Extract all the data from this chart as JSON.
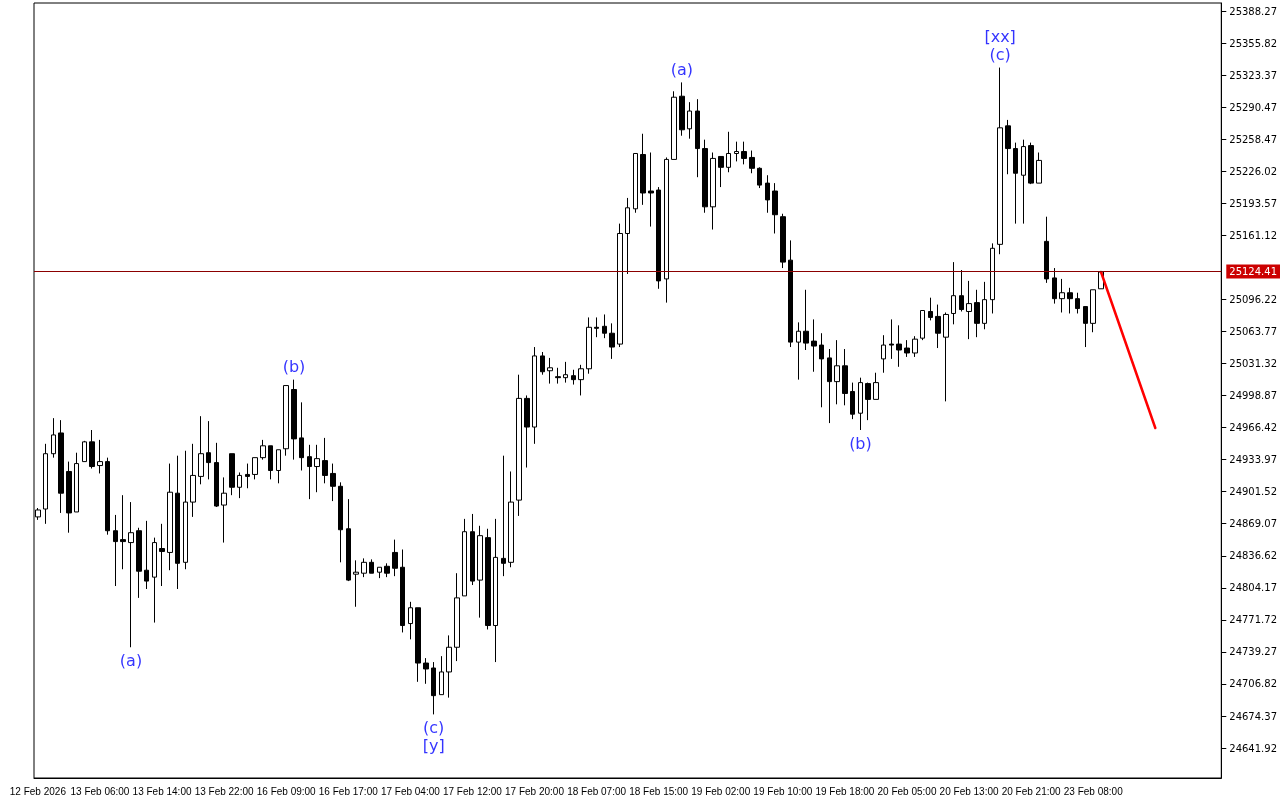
{
  "chart_data": {
    "type": "candlestick",
    "grid": false,
    "categories": [
      "12 Feb 2026",
      null,
      null,
      null,
      null,
      null,
      null,
      null,
      "13 Feb 06:00",
      null,
      null,
      null,
      null,
      null,
      null,
      null,
      "13 Feb 14:00",
      null,
      null,
      null,
      null,
      null,
      null,
      null,
      "13 Feb 22:00",
      null,
      null,
      null,
      null,
      null,
      null,
      null,
      "16 Feb 09:00",
      null,
      null,
      null,
      null,
      null,
      null,
      null,
      "16 Feb 17:00",
      null,
      null,
      null,
      null,
      null,
      null,
      null,
      "17 Feb 04:00",
      null,
      null,
      null,
      null,
      null,
      null,
      null,
      "17 Feb 12:00",
      null,
      null,
      null,
      null,
      null,
      null,
      null,
      "17 Feb 20:00",
      null,
      null,
      null,
      null,
      null,
      null,
      null,
      "18 Feb 07:00",
      null,
      null,
      null,
      null,
      null,
      null,
      null,
      "18 Feb 15:00",
      null,
      null,
      null,
      null,
      null,
      null,
      null,
      "19 Feb 02:00",
      null,
      null,
      null,
      null,
      null,
      null,
      null,
      "19 Feb 10:00",
      null,
      null,
      null,
      null,
      null,
      null,
      null,
      "19 Feb 18:00",
      null,
      null,
      null,
      null,
      null,
      null,
      null,
      "20 Feb 05:00",
      null,
      null,
      null,
      null,
      null,
      null,
      null,
      "20 Feb 13:00",
      null,
      null,
      null,
      null,
      null,
      null,
      null,
      "20 Feb 21:00",
      null,
      null,
      null,
      null,
      null,
      null,
      null,
      "23 Feb 08:00",
      null,
      null,
      null,
      null,
      null,
      null,
      null,
      null,
      null,
      null,
      null,
      null,
      null,
      null,
      null,
      null
    ],
    "ylim": [
      24611.6,
      25396.4
    ],
    "yticks": [
      25388.27,
      25355.82,
      25323.37,
      25290.47,
      25258.47,
      25226.02,
      25193.57,
      25161.12,
      25096.22,
      25063.77,
      25031.32,
      24998.87,
      24966.42,
      24933.97,
      24901.52,
      24869.07,
      24836.62,
      24804.17,
      24771.72,
      24739.27,
      24706.82,
      24674.37,
      24641.92
    ],
    "ref_lines": [
      {
        "axis": "y",
        "value": 25124.41,
        "label": "25124.41",
        "color": "#8b0000"
      }
    ],
    "series": [
      {
        "color": "#000000",
        "ohlc": [
          [
            24876,
            24885,
            24873,
            24883
          ],
          [
            24884,
            24950,
            24869,
            24940
          ],
          [
            24940,
            24976,
            24936,
            24959
          ],
          [
            24961,
            24974,
            24880,
            24900
          ],
          [
            24922,
            24932,
            24860,
            24880
          ],
          [
            24881,
            24941,
            24881,
            24930
          ],
          [
            24932,
            24953,
            24932,
            24952
          ],
          [
            24952,
            24964,
            24925,
            24927
          ],
          [
            24928,
            24954,
            24920,
            24932
          ],
          [
            24932,
            24936,
            24858,
            24862
          ],
          [
            24862,
            24878,
            24806,
            24851
          ],
          [
            24853,
            24898,
            24823,
            24851
          ],
          [
            24850,
            24891,
            24744,
            24860
          ],
          [
            24862,
            24865,
            24794,
            24821
          ],
          [
            24822,
            24872,
            24803,
            24811
          ],
          [
            24815,
            24855,
            24769,
            24850
          ],
          [
            24844,
            24869,
            24806,
            24841
          ],
          [
            24840,
            24930,
            24822,
            24901
          ],
          [
            24900,
            24938,
            24803,
            24829
          ],
          [
            24830,
            24943,
            24823,
            24891
          ],
          [
            24891,
            24950,
            24876,
            24918
          ],
          [
            24917,
            24978,
            24909,
            24940
          ],
          [
            24941,
            24973,
            24914,
            24931
          ],
          [
            24931,
            24951,
            24886,
            24887
          ],
          [
            24888,
            24916,
            24850,
            24900
          ],
          [
            24940,
            24940,
            24898,
            24906
          ],
          [
            24906,
            24921,
            24895,
            24918
          ],
          [
            24919,
            24930,
            24905,
            24917
          ],
          [
            24919,
            24936,
            24914,
            24936
          ],
          [
            24936,
            24954,
            24934,
            24948
          ],
          [
            24948,
            24948,
            24914,
            24923
          ],
          [
            24923,
            24944,
            24910,
            24944
          ],
          [
            24945,
            25009,
            24938,
            25009
          ],
          [
            25005,
            25015,
            24934,
            24955
          ],
          [
            24956,
            24992,
            24923,
            24936
          ],
          [
            24937,
            24949,
            24894,
            24927
          ],
          [
            24927,
            24949,
            24901,
            24935
          ],
          [
            24933,
            24956,
            24910,
            24918
          ],
          [
            24920,
            24930,
            24892,
            24907
          ],
          [
            24907,
            24911,
            24830,
            24863
          ],
          [
            24864,
            24894,
            24811,
            24812
          ],
          [
            24818,
            24832,
            24785,
            24820
          ],
          [
            24819,
            24834,
            24815,
            24830
          ],
          [
            24830,
            24833,
            24819,
            24819
          ],
          [
            24820,
            24825,
            24814,
            24825
          ],
          [
            24826,
            24829,
            24815,
            24819
          ],
          [
            24840,
            24853,
            24816,
            24824
          ],
          [
            24825,
            24843,
            24759,
            24766
          ],
          [
            24768,
            24790,
            24752,
            24784
          ],
          [
            24784,
            24784,
            24709,
            24728
          ],
          [
            24728,
            24733,
            24707,
            24722
          ],
          [
            24723,
            24729,
            24676,
            24695
          ],
          [
            24696,
            24735,
            24696,
            24719
          ],
          [
            24719,
            24756,
            24693,
            24744
          ],
          [
            24744,
            24819,
            24730,
            24794
          ],
          [
            24796,
            24874,
            24796,
            24861
          ],
          [
            24861,
            24879,
            24807,
            24811
          ],
          [
            24812,
            24867,
            24774,
            24857
          ],
          [
            24855,
            24864,
            24762,
            24766
          ],
          [
            24766,
            24874,
            24729,
            24835
          ],
          [
            24834,
            24938,
            24816,
            24829
          ],
          [
            24830,
            24922,
            24825,
            24891
          ],
          [
            24893,
            25020,
            24877,
            24996
          ],
          [
            24996,
            24999,
            24926,
            24967
          ],
          [
            24967,
            25048,
            24950,
            25039
          ],
          [
            25039,
            25043,
            25020,
            25023
          ],
          [
            25024,
            25037,
            25011,
            25027
          ],
          [
            25018,
            25027,
            25011,
            25017
          ],
          [
            25017,
            25033,
            25012,
            25020
          ],
          [
            25019,
            25025,
            25010,
            25015
          ],
          [
            25015,
            25030,
            24999,
            25026
          ],
          [
            25026,
            25078,
            25021,
            25068
          ],
          [
            25068,
            25078,
            25058,
            25067
          ],
          [
            25069,
            25081,
            25057,
            25062
          ],
          [
            25062,
            25072,
            25036,
            25048
          ],
          [
            25051,
            25173,
            25048,
            25163
          ],
          [
            25163,
            25199,
            25122,
            25189
          ],
          [
            25188,
            25244,
            25184,
            25244
          ],
          [
            25243,
            25264,
            25192,
            25204
          ],
          [
            25206,
            25245,
            25170,
            25204
          ],
          [
            25207,
            25210,
            25107,
            25115
          ],
          [
            25117,
            25240,
            25093,
            25238
          ],
          [
            25238,
            25307,
            25238,
            25301
          ],
          [
            25302,
            25316,
            25262,
            25268
          ],
          [
            25269,
            25296,
            25259,
            25287
          ],
          [
            25287,
            25299,
            25220,
            25249
          ],
          [
            25249,
            25258,
            25184,
            25190
          ],
          [
            25190,
            25245,
            25167,
            25239
          ],
          [
            25241,
            25241,
            25210,
            25230
          ],
          [
            25230,
            25266,
            25225,
            25244
          ],
          [
            25244,
            25256,
            25236,
            25246
          ],
          [
            25246,
            25256,
            25233,
            25239
          ],
          [
            25240,
            25247,
            25224,
            25229
          ],
          [
            25229,
            25230,
            25209,
            25212
          ],
          [
            25214,
            25222,
            25184,
            25197
          ],
          [
            25206,
            25214,
            25163,
            25182
          ],
          [
            25180,
            25183,
            25128,
            25134
          ],
          [
            25136,
            25156,
            25048,
            25053
          ],
          [
            25053,
            25073,
            25015,
            25064
          ],
          [
            25064,
            25106,
            25045,
            25052
          ],
          [
            25054,
            25076,
            25023,
            25049
          ],
          [
            25050,
            25062,
            24987,
            25036
          ],
          [
            25037,
            25046,
            24971,
            25013
          ],
          [
            25013,
            25055,
            24990,
            25029
          ],
          [
            25029,
            25046,
            24989,
            25001
          ],
          [
            25003,
            25012,
            24975,
            24980
          ],
          [
            24981,
            25017,
            24964,
            25012
          ],
          [
            25011,
            25012,
            24974,
            24995
          ],
          [
            24995,
            25022,
            24995,
            25012
          ],
          [
            25036,
            25060,
            25022,
            25050
          ],
          [
            25051,
            25076,
            25036,
            25050
          ],
          [
            25051,
            25070,
            25028,
            25045
          ],
          [
            25047,
            25055,
            25038,
            25042
          ],
          [
            25042,
            25059,
            25038,
            25056
          ],
          [
            25057,
            25085,
            25055,
            25085
          ],
          [
            25084,
            25098,
            25075,
            25078
          ],
          [
            25079,
            25091,
            25047,
            25062
          ],
          [
            25058,
            25083,
            24993,
            25081
          ],
          [
            25082,
            25134,
            25071,
            25100
          ],
          [
            25100,
            25126,
            25084,
            25086
          ],
          [
            25084,
            25115,
            25056,
            25092
          ],
          [
            25093,
            25106,
            25058,
            25072
          ],
          [
            25072,
            25114,
            25066,
            25096
          ],
          [
            25096,
            25153,
            25082,
            25148
          ],
          [
            25152,
            25331,
            25142,
            25270
          ],
          [
            25272,
            25278,
            25223,
            25249
          ],
          [
            25249,
            25255,
            25173,
            25224
          ],
          [
            25222,
            25258,
            25173,
            25251
          ],
          [
            25252,
            25255,
            25213,
            25214
          ],
          [
            25214,
            25245,
            25214,
            25237
          ],
          [
            25155,
            25180,
            25113,
            25117
          ],
          [
            25118,
            25128,
            25092,
            25097
          ],
          [
            25097,
            25117,
            25083,
            25103
          ],
          [
            25103,
            25108,
            25082,
            25097
          ],
          [
            25097,
            25103,
            25082,
            25087
          ],
          [
            25089,
            25089,
            25048,
            25072
          ],
          [
            25072,
            25106,
            25063,
            25106
          ],
          [
            25107,
            25125,
            25107,
            25124
          ],
          null,
          null,
          null,
          null,
          null,
          null,
          null,
          null,
          null,
          null,
          null,
          null,
          null,
          null,
          null
        ],
        "value_labels": [
          null,
          null,
          null,
          null,
          null,
          null,
          null,
          null,
          null,
          null,
          null,
          null,
          "(a)",
          null,
          null,
          null,
          null,
          null,
          null,
          null,
          null,
          null,
          null,
          null,
          null,
          null,
          null,
          null,
          null,
          null,
          null,
          null,
          null,
          "(b)",
          null,
          null,
          null,
          null,
          null,
          null,
          null,
          null,
          null,
          null,
          null,
          null,
          null,
          null,
          null,
          null,
          null,
          "(c)\n[y]",
          null,
          null,
          null,
          null,
          null,
          null,
          null,
          null,
          null,
          null,
          null,
          null,
          null,
          null,
          null,
          null,
          null,
          null,
          null,
          null,
          null,
          null,
          null,
          null,
          null,
          null,
          null,
          null,
          null,
          null,
          null,
          "(a)",
          null,
          null,
          null,
          null,
          null,
          null,
          null,
          null,
          null,
          null,
          null,
          null,
          null,
          null,
          null,
          null,
          null,
          null,
          null,
          null,
          null,
          null,
          "(b)",
          null,
          null,
          null,
          null,
          null,
          null,
          null,
          null,
          null,
          null,
          null,
          null,
          null,
          null,
          null,
          null,
          null,
          "[xx]\n(c)",
          null,
          null,
          null,
          null,
          null,
          null,
          null,
          null,
          null,
          null,
          null,
          null,
          null,
          null,
          null,
          null,
          null,
          null,
          null,
          null,
          null,
          null,
          null,
          null,
          null,
          null,
          null,
          null
        ]
      },
      {
        "type": "line",
        "color": "#ff0000",
        "values": [
          null,
          null,
          null,
          null,
          null,
          null,
          null,
          null,
          null,
          null,
          null,
          null,
          null,
          null,
          null,
          null,
          null,
          null,
          null,
          null,
          null,
          null,
          null,
          null,
          null,
          null,
          null,
          null,
          null,
          null,
          null,
          null,
          null,
          null,
          null,
          null,
          null,
          null,
          null,
          null,
          null,
          null,
          null,
          null,
          null,
          null,
          null,
          null,
          null,
          null,
          null,
          null,
          null,
          null,
          null,
          null,
          null,
          null,
          null,
          null,
          null,
          null,
          null,
          null,
          null,
          null,
          null,
          null,
          null,
          null,
          null,
          null,
          null,
          null,
          null,
          null,
          null,
          null,
          null,
          null,
          null,
          null,
          null,
          null,
          null,
          null,
          null,
          null,
          null,
          null,
          null,
          null,
          null,
          null,
          null,
          null,
          null,
          null,
          null,
          null,
          null,
          null,
          null,
          null,
          null,
          null,
          null,
          null,
          null,
          null,
          null,
          null,
          null,
          null,
          null,
          null,
          null,
          null,
          null,
          null,
          null,
          null,
          null,
          null,
          null,
          null,
          null,
          null,
          null,
          null,
          null,
          null,
          null,
          null,
          null,
          null,
          null,
          25124,
          null,
          null,
          null,
          null,
          null,
          null,
          24966,
          null,
          null,
          null,
          null,
          null,
          null,
          null,
          null
        ]
      }
    ]
  }
}
